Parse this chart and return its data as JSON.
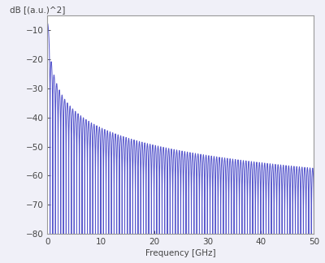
{
  "ylabel": "dB [(a.u.)^2]",
  "xlabel": "Frequency [GHz]",
  "xlim": [
    0,
    50
  ],
  "ylim": [
    -80,
    -5
  ],
  "yticks": [
    -10,
    -20,
    -30,
    -40,
    -50,
    -60,
    -70,
    -80
  ],
  "xticks": [
    0,
    10,
    20,
    30,
    40,
    50
  ],
  "line_color": "#5555cc",
  "f_max": 50,
  "n_points": 50000,
  "background_color": "#f0f0f8",
  "plot_bg_color": "#ffffff",
  "font_color": "#444444",
  "label_fontsize": 7.5,
  "tick_fontsize": 7.5,
  "linewidth": 0.7,
  "peak_db": -7.5,
  "bit_rate": 1.0,
  "osc_period": 1.0,
  "spine_color": "#999999"
}
